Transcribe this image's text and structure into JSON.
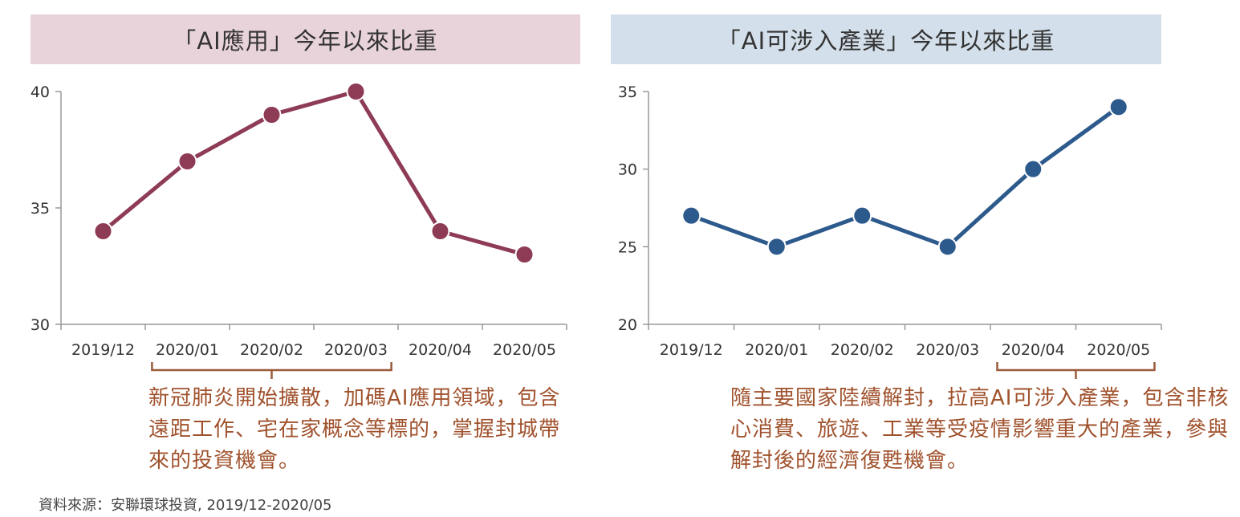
{
  "colors": {
    "left_title_bg": "#e8d3da",
    "right_title_bg": "#d3dfea",
    "left_series": "#8e3b55",
    "right_series": "#2d5a8c",
    "bracket": "#9b5a3c",
    "note_text": "#a0522d"
  },
  "chart_data": [
    {
      "type": "line",
      "title": "「AI應用」今年以來比重",
      "categories": [
        "2019/12",
        "2020/01",
        "2020/02",
        "2020/03",
        "2020/04",
        "2020/05"
      ],
      "values": [
        34,
        37,
        39,
        40,
        34,
        33
      ],
      "ylim": [
        30,
        40
      ],
      "yticks": [
        30,
        35,
        40
      ],
      "grid": false,
      "annotation": {
        "range": [
          "2020/01",
          "2020/03"
        ],
        "text": "新冠肺炎開始擴散，加碼AI應用領域，包含遠距工作、宅在家概念等標的，掌握封城帶來的投資機會。"
      }
    },
    {
      "type": "line",
      "title": "「AI可涉入產業」今年以來比重",
      "categories": [
        "2019/12",
        "2020/01",
        "2020/02",
        "2020/03",
        "2020/04",
        "2020/05"
      ],
      "values": [
        27,
        25,
        27,
        25,
        30,
        34
      ],
      "ylim": [
        20,
        35
      ],
      "yticks": [
        20,
        25,
        30,
        35
      ],
      "grid": false,
      "annotation": {
        "range": [
          "2020/04",
          "2020/05"
        ],
        "text": "隨主要國家陸續解封，拉高AI可涉入產業，包含非核心消費、旅遊、工業等受疫情影響重大的產業，參與解封後的經濟復甦機會。"
      }
    }
  ],
  "source": "資料來源：安聯環球投資, 2019/12-2020/05"
}
